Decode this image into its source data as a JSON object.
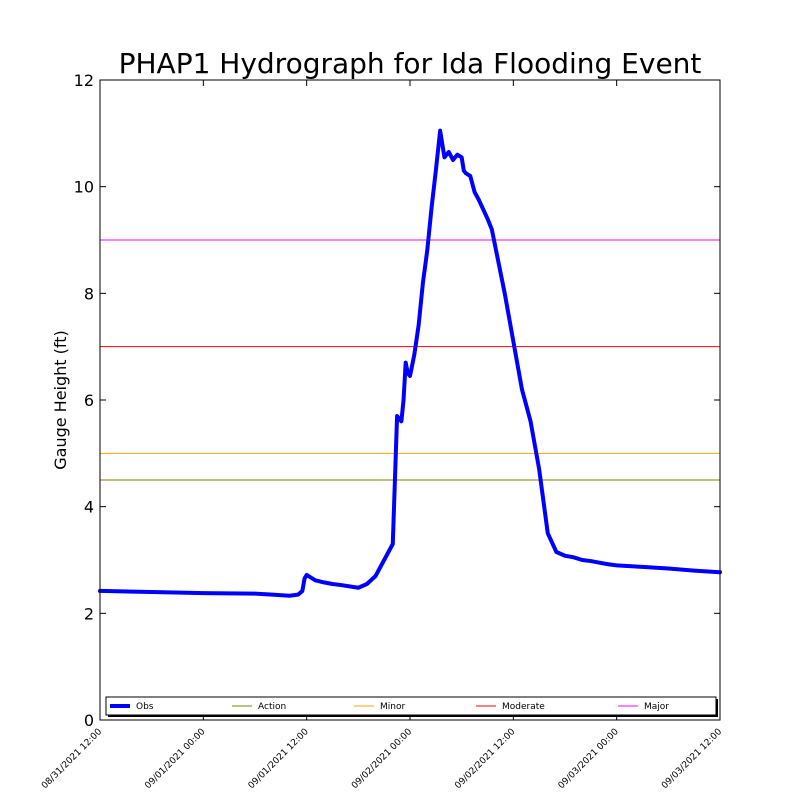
{
  "chart_data": {
    "type": "line",
    "title": "PHAP1 Hydrograph for Ida Flooding Event",
    "xlabel": "",
    "ylabel": "Gauge Height (ft)",
    "xlim": [
      "08/31/2021 12:00",
      "09/03/2021 12:00"
    ],
    "ylim": [
      0,
      12
    ],
    "yticks": [
      "0",
      "2",
      "4",
      "6",
      "8",
      "10",
      "12"
    ],
    "xticks": [
      "08/31/2021 12:00",
      "09/01/2021 00:00",
      "09/01/2021 12:00",
      "09/02/2021 00:00",
      "09/02/2021 12:00",
      "09/03/2021 00:00",
      "09/03/2021 12:00"
    ],
    "grid": false,
    "legend_placement": "bottom",
    "series": [
      {
        "name": "Obs",
        "color": "#0000ff",
        "x": [
          "08/31/2021 12:00",
          "08/31/2021 18:00",
          "09/01/2021 00:00",
          "09/01/2021 06:00",
          "09/01/2021 08:00",
          "09/01/2021 10:00",
          "09/01/2021 11:00",
          "09/01/2021 11:30",
          "09/01/2021 11:45",
          "09/01/2021 12:00",
          "09/01/2021 13:00",
          "09/01/2021 14:00",
          "09/01/2021 15:00",
          "09/01/2021 16:00",
          "09/01/2021 18:00",
          "09/01/2021 19:00",
          "09/01/2021 20:00",
          "09/01/2021 21:00",
          "09/01/2021 22:00",
          "09/01/2021 22:30",
          "09/01/2021 23:00",
          "09/01/2021 23:15",
          "09/01/2021 23:30",
          "09/01/2021 23:45",
          "09/02/2021 00:00",
          "09/02/2021 00:30",
          "09/02/2021 01:00",
          "09/02/2021 01:30",
          "09/02/2021 02:00",
          "09/02/2021 02:30",
          "09/02/2021 03:00",
          "09/02/2021 03:30",
          "09/02/2021 04:00",
          "09/02/2021 04:30",
          "09/02/2021 05:00",
          "09/02/2021 05:30",
          "09/02/2021 06:00",
          "09/02/2021 06:15",
          "09/02/2021 06:30",
          "09/02/2021 07:00",
          "09/02/2021 07:30",
          "09/02/2021 08:00",
          "09/02/2021 09:00",
          "09/02/2021 09:30",
          "09/02/2021 10:00",
          "09/02/2021 11:00",
          "09/02/2021 12:00",
          "09/02/2021 13:00",
          "09/02/2021 14:00",
          "09/02/2021 15:00",
          "09/02/2021 16:00",
          "09/02/2021 17:00",
          "09/02/2021 18:00",
          "09/02/2021 19:00",
          "09/02/2021 20:00",
          "09/02/2021 21:00",
          "09/02/2021 22:00",
          "09/02/2021 23:00",
          "09/03/2021 00:00",
          "09/03/2021 03:00",
          "09/03/2021 06:00",
          "09/03/2021 09:00",
          "09/03/2021 12:00"
        ],
        "y": [
          2.42,
          2.4,
          2.38,
          2.37,
          2.35,
          2.33,
          2.35,
          2.42,
          2.65,
          2.72,
          2.62,
          2.58,
          2.55,
          2.53,
          2.48,
          2.55,
          2.7,
          3.0,
          3.3,
          5.7,
          5.6,
          6.0,
          6.7,
          6.5,
          6.45,
          6.85,
          7.4,
          8.2,
          8.8,
          9.6,
          10.3,
          11.05,
          10.55,
          10.65,
          10.5,
          10.6,
          10.55,
          10.3,
          10.25,
          10.2,
          9.9,
          9.75,
          9.4,
          9.2,
          8.8,
          8.0,
          7.1,
          6.2,
          5.6,
          4.7,
          3.5,
          3.15,
          3.08,
          3.05,
          3.0,
          2.98,
          2.95,
          2.92,
          2.9,
          2.87,
          2.84,
          2.8,
          2.77
        ]
      },
      {
        "name": "Action",
        "color": "#808000",
        "value": 4.5
      },
      {
        "name": "Minor",
        "color": "#ffa500",
        "value": 5.0
      },
      {
        "name": "Moderate",
        "color": "#ff0000",
        "value": 7.0
      },
      {
        "name": "Major",
        "color": "#ff00ff",
        "value": 9.0
      }
    ]
  }
}
